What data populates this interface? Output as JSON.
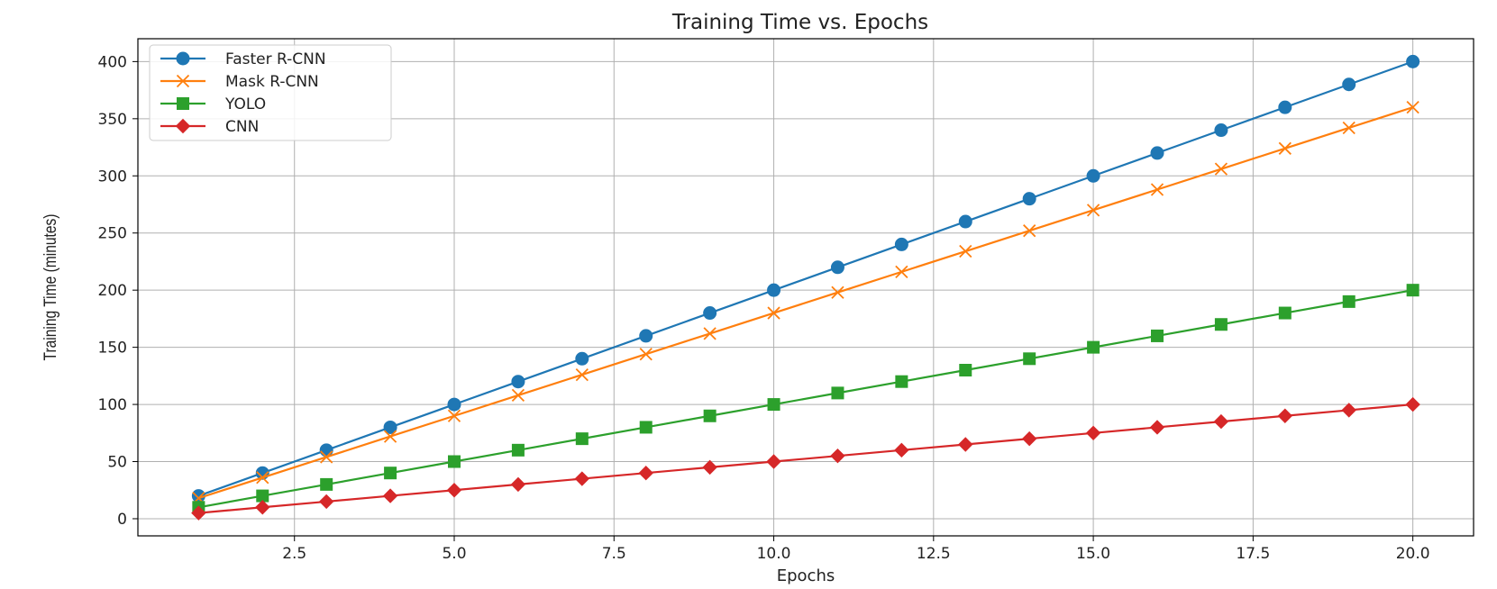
{
  "chart_data": {
    "type": "line",
    "title": "Training Time vs. Epochs",
    "xlabel": "Epochs",
    "ylabel": "Training Time (minutes)",
    "xlim": [
      0.05,
      20.95
    ],
    "ylim": [
      -15,
      420
    ],
    "xticks": [
      2.5,
      5.0,
      7.5,
      10.0,
      12.5,
      15.0,
      17.5,
      20.0
    ],
    "xtick_labels": [
      "2.5",
      "5.0",
      "7.5",
      "10.0",
      "12.5",
      "15.0",
      "17.5",
      "20.0"
    ],
    "yticks": [
      0,
      50,
      100,
      150,
      200,
      250,
      300,
      350,
      400
    ],
    "ytick_labels": [
      "0",
      "50",
      "100",
      "150",
      "200",
      "250",
      "300",
      "350",
      "400"
    ],
    "grid": true,
    "legend_position": "top-left",
    "x": [
      1,
      2,
      3,
      4,
      5,
      6,
      7,
      8,
      9,
      10,
      11,
      12,
      13,
      14,
      15,
      16,
      17,
      18,
      19,
      20
    ],
    "series": [
      {
        "name": "Faster R-CNN",
        "color": "#1f77b4",
        "marker": "circle",
        "values": [
          20,
          40,
          60,
          80,
          100,
          120,
          140,
          160,
          180,
          200,
          220,
          240,
          260,
          280,
          300,
          320,
          340,
          360,
          380,
          400
        ]
      },
      {
        "name": "Mask R-CNN",
        "color": "#ff7f0e",
        "marker": "x",
        "values": [
          18,
          36,
          54,
          72,
          90,
          108,
          126,
          144,
          162,
          180,
          198,
          216,
          234,
          252,
          270,
          288,
          306,
          324,
          342,
          360
        ]
      },
      {
        "name": "YOLO",
        "color": "#2ca02c",
        "marker": "square",
        "values": [
          10,
          20,
          30,
          40,
          50,
          60,
          70,
          80,
          90,
          100,
          110,
          120,
          130,
          140,
          150,
          160,
          170,
          180,
          190,
          200
        ]
      },
      {
        "name": "CNN",
        "color": "#d62728",
        "marker": "diamond",
        "values": [
          5,
          10,
          15,
          20,
          25,
          30,
          35,
          40,
          45,
          50,
          55,
          60,
          65,
          70,
          75,
          80,
          85,
          90,
          95,
          100
        ]
      }
    ]
  }
}
